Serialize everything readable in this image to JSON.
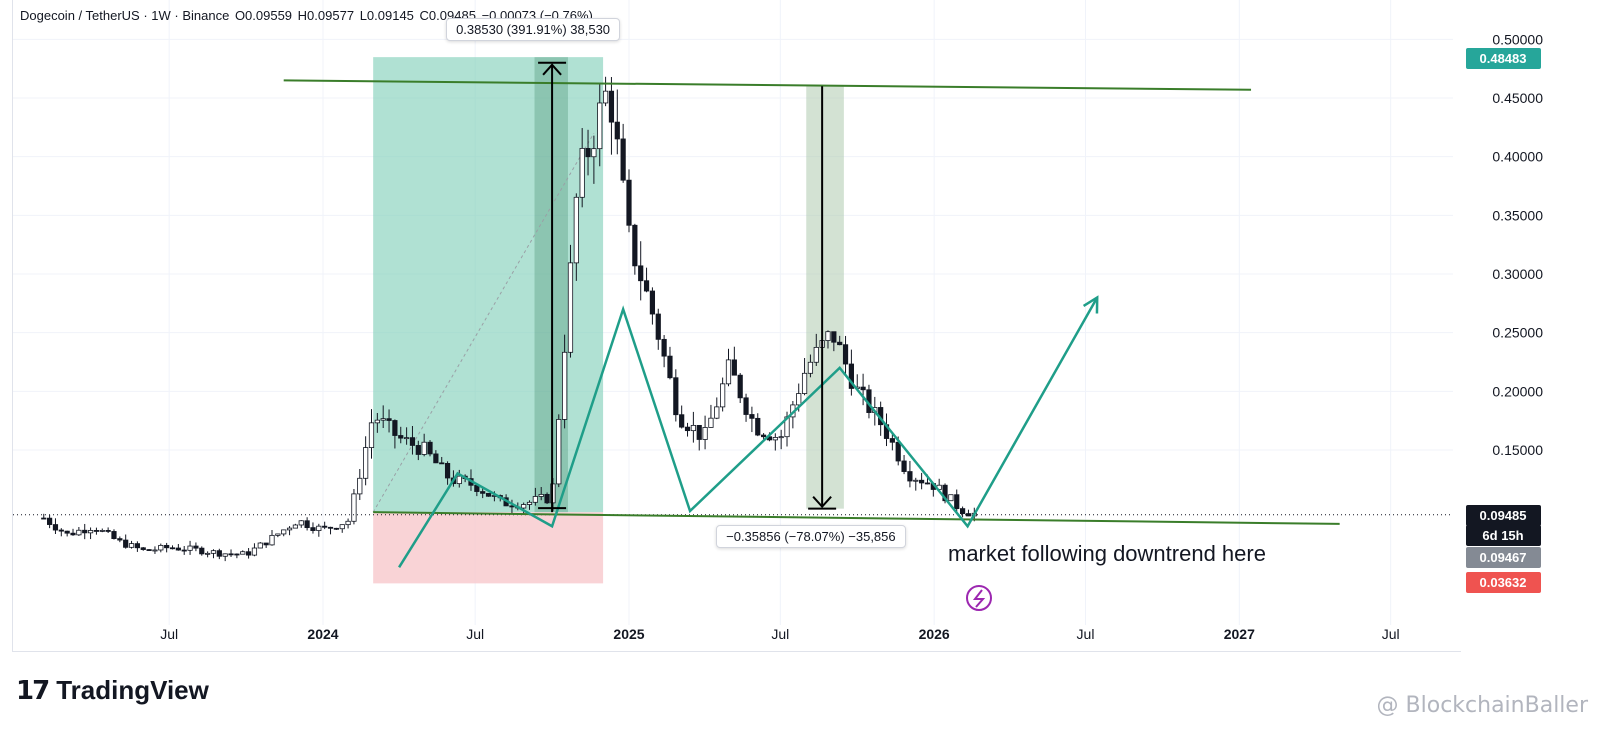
{
  "header": {
    "symbol": "Dogecoin / TetherUS · 1W · Binance",
    "open": "O0.09559",
    "high": "H0.09577",
    "low": "L0.09145",
    "close": "C0.09485",
    "change": "−0.00073 (−0.76%)"
  },
  "measurements": {
    "up": "0.38530 (391.91%) 38,530",
    "down": "−0.35856 (−78.07%) −35,856"
  },
  "annotation": "market following downtrend here",
  "brand": {
    "name": "TradingView",
    "mark": "17"
  },
  "watermark": "@ BlockchainBaller",
  "badges": {
    "high": "0.48483",
    "last": "0.09485",
    "countdown": "6d 15h",
    "mid": "0.09467",
    "low": "0.03632"
  },
  "colors": {
    "up_candle": "#26a69a",
    "down_candle": "#131722",
    "trendline": "#3a7d2a",
    "zigzag": "#1f9e89",
    "long_zone": "#7fcfb8",
    "short_zone": "#f8c8cc",
    "badge_green": "#26a69a",
    "badge_black": "#131722",
    "badge_grey": "#848a94",
    "badge_red": "#ef5350",
    "icon_purple": "#9c27b0"
  },
  "chart_data": {
    "type": "candlestick",
    "symbol": "DOGEUSDT",
    "interval": "1W",
    "y_ticks": [
      0.15,
      0.2,
      0.25,
      0.3,
      0.35,
      0.4,
      0.45,
      0.5
    ],
    "y_tick_labels": [
      "0.15000",
      "0.20000",
      "0.25000",
      "0.30000",
      "0.35000",
      "0.40000",
      "0.45000",
      "0.50000"
    ],
    "ylim": [
      0.02,
      0.52
    ],
    "x_ticks": [
      {
        "label": "Jul",
        "date": "2023-07-01",
        "bold": false
      },
      {
        "label": "2024",
        "date": "2024-01-01",
        "bold": true
      },
      {
        "label": "Jul",
        "date": "2024-07-01",
        "bold": false
      },
      {
        "label": "2025",
        "date": "2025-01-01",
        "bold": true
      },
      {
        "label": "Jul",
        "date": "2025-07-01",
        "bold": false
      },
      {
        "label": "2026",
        "date": "2026-01-01",
        "bold": true
      },
      {
        "label": "Jul",
        "date": "2026-07-01",
        "bold": false
      },
      {
        "label": "2027",
        "date": "2027-01-01",
        "bold": true
      },
      {
        "label": "Jul",
        "date": "2027-07-01",
        "bold": false
      }
    ],
    "price_path": [
      [
        "2023-02-01",
        0.092
      ],
      [
        "2023-03-01",
        0.078
      ],
      [
        "2023-04-01",
        0.085
      ],
      [
        "2023-05-01",
        0.072
      ],
      [
        "2023-06-01",
        0.064
      ],
      [
        "2023-07-01",
        0.067
      ],
      [
        "2023-08-01",
        0.065
      ],
      [
        "2023-09-01",
        0.062
      ],
      [
        "2023-10-01",
        0.061
      ],
      [
        "2023-11-01",
        0.075
      ],
      [
        "2023-12-01",
        0.09
      ],
      [
        "2024-01-01",
        0.082
      ],
      [
        "2024-02-01",
        0.09
      ],
      [
        "2024-03-01",
        0.18
      ],
      [
        "2024-04-01",
        0.16
      ],
      [
        "2024-05-01",
        0.15
      ],
      [
        "2024-06-01",
        0.125
      ],
      [
        "2024-07-01",
        0.12
      ],
      [
        "2024-08-01",
        0.105
      ],
      [
        "2024-09-01",
        0.105
      ],
      [
        "2024-10-01",
        0.11
      ],
      [
        "2024-11-01",
        0.38
      ],
      [
        "2024-12-08",
        0.46
      ],
      [
        "2025-01-01",
        0.33
      ],
      [
        "2025-02-01",
        0.26
      ],
      [
        "2025-03-01",
        0.18
      ],
      [
        "2025-04-01",
        0.16
      ],
      [
        "2025-05-01",
        0.22
      ],
      [
        "2025-06-01",
        0.17
      ],
      [
        "2025-07-01",
        0.16
      ],
      [
        "2025-08-01",
        0.22
      ],
      [
        "2025-09-01",
        0.25
      ],
      [
        "2025-10-01",
        0.2
      ],
      [
        "2025-11-01",
        0.17
      ],
      [
        "2025-12-01",
        0.13
      ],
      [
        "2026-01-01",
        0.12
      ],
      [
        "2026-02-01",
        0.1
      ],
      [
        "2026-02-20",
        0.095
      ]
    ],
    "last_price": 0.09485,
    "trendlines": [
      {
        "from": [
          "2023-11-15",
          0.465
        ],
        "to": [
          "2027-01-15",
          0.457
        ]
      },
      {
        "from": [
          "2024-03-01",
          0.097
        ],
        "to": [
          "2027-05-01",
          0.087
        ]
      }
    ],
    "zigzag": [
      [
        "2024-04-01",
        0.05
      ],
      [
        "2024-06-10",
        0.13
      ],
      [
        "2024-10-01",
        0.085
      ],
      [
        "2024-12-25",
        0.27
      ],
      [
        "2025-03-15",
        0.098
      ],
      [
        "2025-09-10",
        0.22
      ],
      [
        "2026-02-10",
        0.085
      ],
      [
        "2026-07-15",
        0.28
      ]
    ],
    "long_position": {
      "start": "2024-03-01",
      "end": "2024-12-01",
      "entry": 0.097,
      "target": 0.48483,
      "stop": 0.03632
    },
    "measure_up": {
      "x": "2024-10-01",
      "from": 0.097,
      "to": 0.48
    },
    "measure_down": {
      "start": "2025-08-01",
      "end": "2025-09-15",
      "x": "2025-08-20",
      "from": 0.46,
      "to": 0.1
    }
  }
}
